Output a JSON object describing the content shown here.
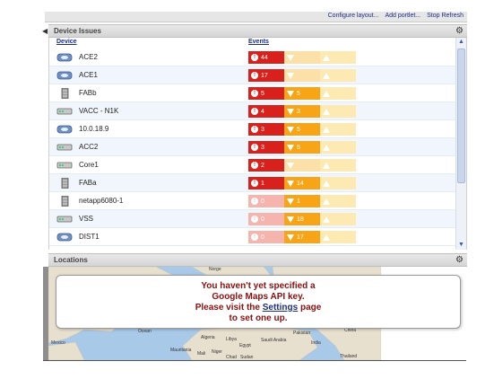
{
  "toolbar": {
    "links": [
      "Configure layout...",
      "Add portlet...",
      "Stop Refresh"
    ]
  },
  "device_issues": {
    "title": "Device Issues",
    "col_device": "Device",
    "col_events": "Events",
    "rows": [
      {
        "name": "ACE2",
        "icon": "load-balancer-icon",
        "critical": "44",
        "major": "",
        "minor": ""
      },
      {
        "name": "ACE1",
        "icon": "load-balancer-icon",
        "critical": "17",
        "major": "",
        "minor": ""
      },
      {
        "name": "FABb",
        "icon": "server-icon",
        "critical": "5",
        "major": "5",
        "minor": ""
      },
      {
        "name": "VACC - N1K",
        "icon": "switch-icon",
        "critical": "4",
        "major": "3",
        "minor": ""
      },
      {
        "name": "10.0.18.9",
        "icon": "load-balancer-icon",
        "critical": "3",
        "major": "5",
        "minor": ""
      },
      {
        "name": "ACC2",
        "icon": "switch-icon",
        "critical": "3",
        "major": "5",
        "minor": ""
      },
      {
        "name": "Core1",
        "icon": "switch-icon",
        "critical": "2",
        "major": "",
        "minor": ""
      },
      {
        "name": "FABa",
        "icon": "server-icon",
        "critical": "1",
        "major": "14",
        "minor": ""
      },
      {
        "name": "netapp6080-1",
        "icon": "server-icon",
        "critical": "0",
        "major": "1",
        "minor": ""
      },
      {
        "name": "VSS",
        "icon": "switch-icon",
        "critical": "0",
        "major": "18",
        "minor": ""
      },
      {
        "name": "DIST1",
        "icon": "load-balancer-icon",
        "critical": "0",
        "major": "17",
        "minor": ""
      }
    ]
  },
  "locations": {
    "title": "Locations",
    "map_labels": [
      "Norge",
      "Ocean",
      "Mexico",
      "Algeria",
      "Libya",
      "Egypt",
      "Saudi Arabia",
      "Mauritania",
      "Mali",
      "Niger",
      "Chad",
      "Sudan",
      "Pakistan",
      "India",
      "China",
      "Thailand"
    ],
    "message": {
      "line1": "You haven't yet specified a",
      "line2": "Google Maps API key.",
      "line3_pre": "Please visit the ",
      "link": "Settings",
      "line3_post": " page",
      "line4": "to set one up."
    }
  },
  "colors": {
    "critical": "#d8211c",
    "major": "#f7a517",
    "minor": "#fdeab3",
    "link": "#1d2e85",
    "message": "#8b0f0f"
  }
}
